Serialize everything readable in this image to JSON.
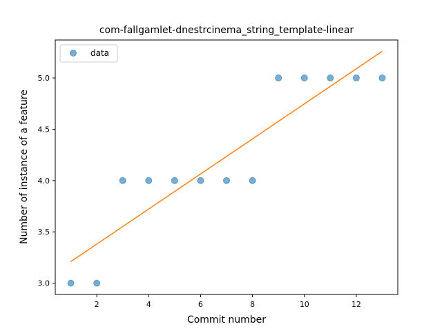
{
  "chart_data": {
    "type": "scatter",
    "title": "com-fallgamlet-dnestrcinema_string_template-linear",
    "xlabel": "Commit number",
    "ylabel": "Number of instance of a feature",
    "xlim": [
      0.4,
      13.6
    ],
    "ylim": [
      2.89,
      5.37
    ],
    "xticks": [
      2,
      4,
      6,
      8,
      10,
      12
    ],
    "yticks": [
      3.0,
      3.5,
      4.0,
      4.5,
      5.0
    ],
    "ytick_labels": [
      "3.0",
      "3.5",
      "4.0",
      "4.5",
      "5.0"
    ],
    "legend_position": "upper-left",
    "series": [
      {
        "name": "data",
        "kind": "scatter",
        "color": "#1f77b4",
        "x": [
          1,
          2,
          3,
          4,
          5,
          6,
          7,
          8,
          9,
          10,
          11,
          12,
          13
        ],
        "y": [
          3,
          3,
          4,
          4,
          4,
          4,
          4,
          4,
          5,
          5,
          5,
          5,
          5
        ]
      },
      {
        "kind": "line",
        "color": "#ff7f0e",
        "x": [
          1,
          13
        ],
        "y": [
          3.21,
          5.26
        ]
      }
    ]
  }
}
